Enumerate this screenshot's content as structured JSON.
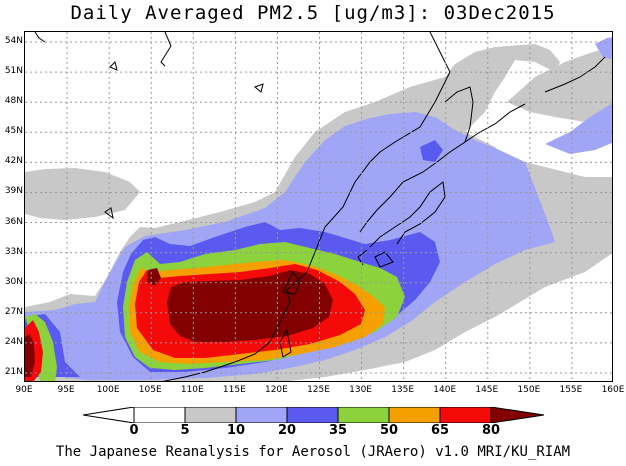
{
  "title": "Daily Averaged PM2.5 [ug/m3]: 03Dec2015",
  "footer": "The Japanese Reanalysis for Aerosol (JRAero) v1.0 MRI/KU_RIAM",
  "map": {
    "lon_min": 90,
    "lon_max": 160,
    "lat_min": 20,
    "lat_max": 55,
    "lat_ticks": [
      "21N",
      "24N",
      "27N",
      "30N",
      "33N",
      "36N",
      "39N",
      "42N",
      "45N",
      "48N",
      "51N",
      "54N"
    ],
    "lon_ticks": [
      "90E",
      "95E",
      "100E",
      "105E",
      "110E",
      "115E",
      "120E",
      "125E",
      "130E",
      "135E",
      "140E",
      "145E",
      "150E",
      "155E",
      "160E"
    ],
    "levels": [
      {
        "min": 5,
        "color": "#c8c8c8"
      },
      {
        "min": 10,
        "color": "#a0a5f5"
      },
      {
        "min": 20,
        "color": "#5a5af0"
      },
      {
        "min": 35,
        "color": "#8cd23c"
      },
      {
        "min": 50,
        "color": "#f5a000"
      },
      {
        "min": 65,
        "color": "#f50a0a"
      },
      {
        "min": 80,
        "color": "#820000"
      }
    ]
  },
  "colorbar": {
    "labels": [
      "0",
      "5",
      "10",
      "20",
      "35",
      "50",
      "65",
      "80"
    ],
    "colors": [
      "#ffffff",
      "#ffffff",
      "#c8c8c8",
      "#a0a5f5",
      "#5a5af0",
      "#8cd23c",
      "#f5a000",
      "#f50a0a",
      "#820000"
    ]
  }
}
